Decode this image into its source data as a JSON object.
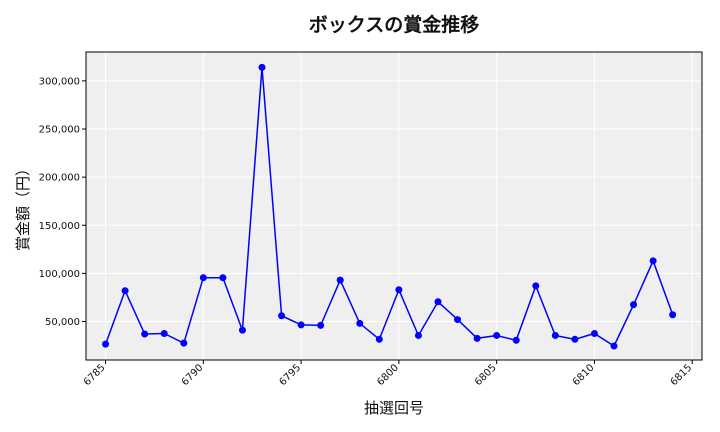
{
  "chart_data": {
    "type": "line",
    "title": "ボックスの賞金推移",
    "xlabel": "抽選回号",
    "ylabel": "賞金額（円）",
    "xlim": [
      6784.0,
      6815.5
    ],
    "ylim": [
      10000,
      330000
    ],
    "xticks": [
      6785,
      6790,
      6795,
      6800,
      6805,
      6810,
      6815
    ],
    "yticks": [
      50000,
      100000,
      150000,
      200000,
      250000,
      300000
    ],
    "ytick_labels": [
      "50,000",
      "100,000",
      "150,000",
      "200,000",
      "250,000",
      "300,000"
    ],
    "grid": true,
    "series": [
      {
        "color": "#0000ff",
        "marker": "circle",
        "x": [
          6785,
          6786,
          6787,
          6788,
          6789,
          6790,
          6791,
          6792,
          6793,
          6794,
          6795,
          6796,
          6797,
          6798,
          6799,
          6800,
          6801,
          6802,
          6803,
          6804,
          6805,
          6806,
          6807,
          6808,
          6809,
          6810,
          6811,
          6812,
          6813,
          6814
        ],
        "y": [
          26500,
          82000,
          37000,
          37500,
          27500,
          95500,
          95500,
          41000,
          314000,
          56000,
          46500,
          46000,
          93000,
          48000,
          31500,
          83000,
          35500,
          70500,
          52000,
          32500,
          35500,
          30500,
          87000,
          35500,
          31500,
          37500,
          24500,
          67500,
          113000,
          57000
        ]
      }
    ]
  }
}
